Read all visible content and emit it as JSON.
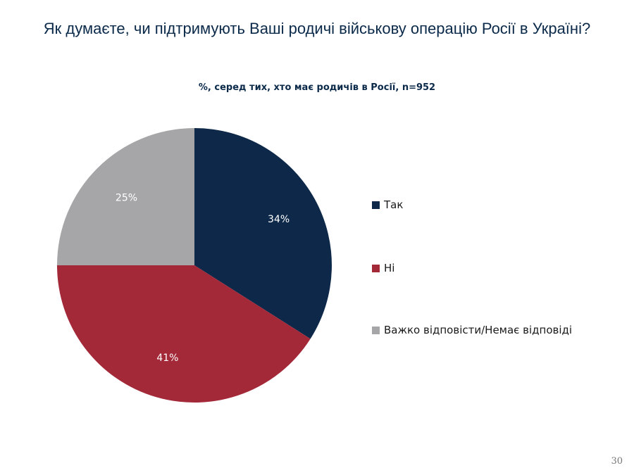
{
  "chart_data": {
    "type": "pie",
    "title": "Як думаєте, чи підтримують Ваші родичі військову операцію Росії в Україні?",
    "subtitle": "%, серед тих, хто має родичів в Росії, n=952",
    "slices": [
      {
        "label": "Так",
        "value": 34,
        "display": "34%",
        "color": "#0d2849"
      },
      {
        "label": "Ні",
        "value": 41,
        "display": "41%",
        "color": "#a32838"
      },
      {
        "label": "Важко відповісти/Немає відповіді",
        "value": 25,
        "display": "25%",
        "color": "#a6a6a8"
      }
    ],
    "legend_position": "right"
  },
  "page": {
    "number": "30"
  }
}
